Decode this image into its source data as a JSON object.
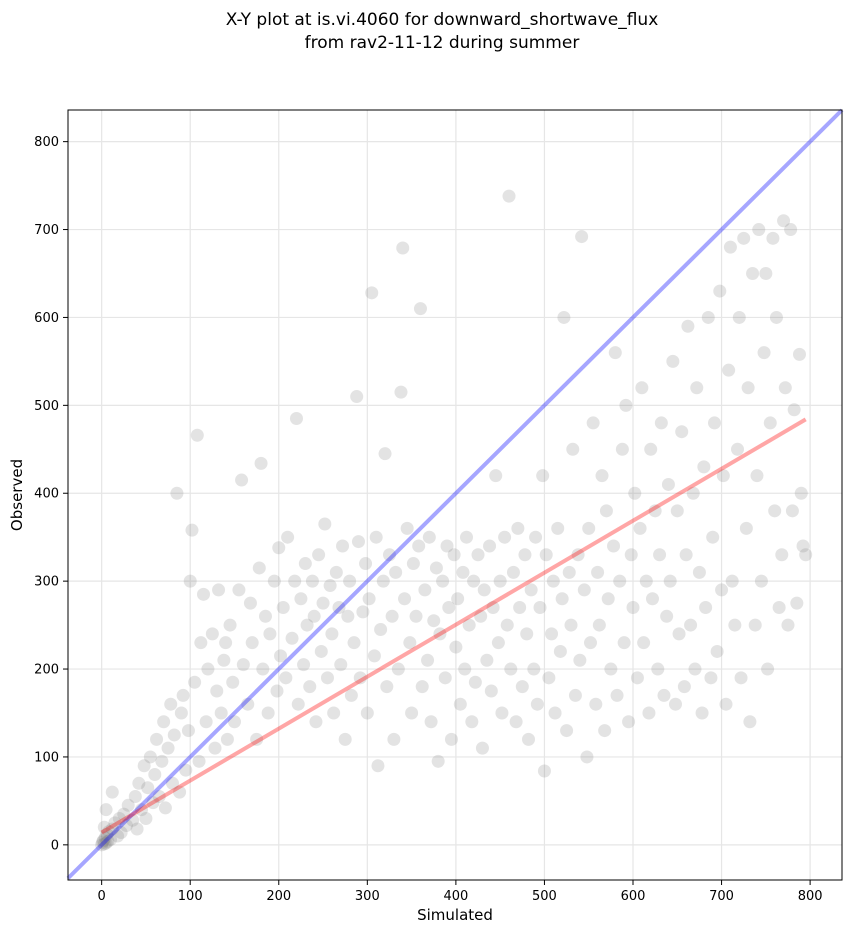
{
  "chart_data": {
    "type": "scatter",
    "title_lines": [
      "X-Y plot at is.vi.4060 for downward_shortwave_flux",
      "from rav2-11-12 during summer"
    ],
    "xlabel": "Simulated",
    "ylabel": "Observed",
    "xlim": [
      -38,
      836
    ],
    "ylim": [
      -40,
      836
    ],
    "x_ticks": [
      0,
      100,
      200,
      300,
      400,
      500,
      600,
      700,
      800
    ],
    "y_ticks": [
      0,
      100,
      200,
      300,
      400,
      500,
      600,
      700,
      800
    ],
    "grid": true,
    "point_color": "#808080",
    "one_to_one_line": {
      "color": "#0000ff",
      "x": [
        -38,
        836
      ],
      "y": [
        -38,
        836
      ]
    },
    "fit_line": {
      "color": "#ff0000",
      "x": [
        0,
        795
      ],
      "y": [
        14,
        484
      ]
    },
    "points_xy": [
      [
        0,
        0
      ],
      [
        1,
        3
      ],
      [
        2,
        5
      ],
      [
        3,
        1
      ],
      [
        4,
        8
      ],
      [
        5,
        2
      ],
      [
        6,
        12
      ],
      [
        7,
        4
      ],
      [
        8,
        15
      ],
      [
        10,
        6
      ],
      [
        3,
        20
      ],
      [
        12,
        18
      ],
      [
        15,
        25
      ],
      [
        18,
        10
      ],
      [
        20,
        30
      ],
      [
        5,
        40
      ],
      [
        22,
        14
      ],
      [
        25,
        35
      ],
      [
        28,
        22
      ],
      [
        30,
        45
      ],
      [
        12,
        60
      ],
      [
        35,
        28
      ],
      [
        38,
        55
      ],
      [
        40,
        18
      ],
      [
        42,
        70
      ],
      [
        45,
        40
      ],
      [
        48,
        90
      ],
      [
        50,
        30
      ],
      [
        52,
        65
      ],
      [
        55,
        100
      ],
      [
        58,
        48
      ],
      [
        60,
        80
      ],
      [
        62,
        120
      ],
      [
        65,
        55
      ],
      [
        68,
        95
      ],
      [
        70,
        140
      ],
      [
        72,
        42
      ],
      [
        75,
        110
      ],
      [
        78,
        160
      ],
      [
        80,
        70
      ],
      [
        82,
        125
      ],
      [
        85,
        400
      ],
      [
        88,
        60
      ],
      [
        90,
        150
      ],
      [
        92,
        170
      ],
      [
        95,
        85
      ],
      [
        98,
        130
      ],
      [
        100,
        300
      ],
      [
        102,
        358
      ],
      [
        105,
        185
      ],
      [
        108,
        466
      ],
      [
        110,
        95
      ],
      [
        112,
        230
      ],
      [
        115,
        285
      ],
      [
        118,
        140
      ],
      [
        120,
        200
      ],
      [
        125,
        240
      ],
      [
        128,
        110
      ],
      [
        130,
        175
      ],
      [
        132,
        290
      ],
      [
        135,
        150
      ],
      [
        138,
        210
      ],
      [
        140,
        230
      ],
      [
        142,
        120
      ],
      [
        145,
        250
      ],
      [
        148,
        185
      ],
      [
        150,
        140
      ],
      [
        155,
        290
      ],
      [
        158,
        415
      ],
      [
        160,
        205
      ],
      [
        165,
        160
      ],
      [
        168,
        275
      ],
      [
        170,
        230
      ],
      [
        175,
        120
      ],
      [
        178,
        315
      ],
      [
        180,
        434
      ],
      [
        182,
        200
      ],
      [
        185,
        260
      ],
      [
        188,
        150
      ],
      [
        190,
        240
      ],
      [
        195,
        300
      ],
      [
        198,
        175
      ],
      [
        200,
        338
      ],
      [
        202,
        215
      ],
      [
        205,
        270
      ],
      [
        208,
        190
      ],
      [
        210,
        350
      ],
      [
        215,
        235
      ],
      [
        218,
        300
      ],
      [
        220,
        485
      ],
      [
        222,
        160
      ],
      [
        225,
        280
      ],
      [
        228,
        205
      ],
      [
        230,
        320
      ],
      [
        232,
        250
      ],
      [
        235,
        180
      ],
      [
        238,
        300
      ],
      [
        240,
        260
      ],
      [
        242,
        140
      ],
      [
        245,
        330
      ],
      [
        248,
        220
      ],
      [
        250,
        275
      ],
      [
        252,
        365
      ],
      [
        255,
        190
      ],
      [
        258,
        295
      ],
      [
        260,
        240
      ],
      [
        262,
        150
      ],
      [
        265,
        310
      ],
      [
        268,
        270
      ],
      [
        270,
        205
      ],
      [
        272,
        340
      ],
      [
        275,
        120
      ],
      [
        278,
        260
      ],
      [
        280,
        300
      ],
      [
        282,
        170
      ],
      [
        285,
        230
      ],
      [
        288,
        510
      ],
      [
        290,
        345
      ],
      [
        292,
        190
      ],
      [
        295,
        265
      ],
      [
        298,
        320
      ],
      [
        300,
        150
      ],
      [
        302,
        280
      ],
      [
        305,
        628
      ],
      [
        308,
        215
      ],
      [
        310,
        350
      ],
      [
        312,
        90
      ],
      [
        315,
        245
      ],
      [
        318,
        300
      ],
      [
        320,
        445
      ],
      [
        322,
        180
      ],
      [
        325,
        330
      ],
      [
        328,
        260
      ],
      [
        330,
        120
      ],
      [
        332,
        310
      ],
      [
        335,
        200
      ],
      [
        338,
        515
      ],
      [
        340,
        679
      ],
      [
        342,
        280
      ],
      [
        345,
        360
      ],
      [
        348,
        230
      ],
      [
        350,
        150
      ],
      [
        352,
        320
      ],
      [
        355,
        260
      ],
      [
        358,
        340
      ],
      [
        360,
        610
      ],
      [
        362,
        180
      ],
      [
        365,
        290
      ],
      [
        368,
        210
      ],
      [
        370,
        350
      ],
      [
        372,
        140
      ],
      [
        375,
        255
      ],
      [
        378,
        315
      ],
      [
        380,
        95
      ],
      [
        382,
        240
      ],
      [
        385,
        300
      ],
      [
        388,
        190
      ],
      [
        390,
        340
      ],
      [
        392,
        270
      ],
      [
        395,
        120
      ],
      [
        398,
        330
      ],
      [
        400,
        225
      ],
      [
        402,
        280
      ],
      [
        405,
        160
      ],
      [
        408,
        310
      ],
      [
        410,
        200
      ],
      [
        412,
        350
      ],
      [
        415,
        250
      ],
      [
        418,
        140
      ],
      [
        420,
        300
      ],
      [
        422,
        185
      ],
      [
        425,
        330
      ],
      [
        428,
        260
      ],
      [
        430,
        110
      ],
      [
        432,
        290
      ],
      [
        435,
        210
      ],
      [
        438,
        340
      ],
      [
        440,
        175
      ],
      [
        442,
        270
      ],
      [
        445,
        420
      ],
      [
        448,
        230
      ],
      [
        450,
        300
      ],
      [
        452,
        150
      ],
      [
        455,
        350
      ],
      [
        458,
        250
      ],
      [
        460,
        738
      ],
      [
        462,
        200
      ],
      [
        465,
        310
      ],
      [
        468,
        140
      ],
      [
        470,
        360
      ],
      [
        472,
        270
      ],
      [
        475,
        180
      ],
      [
        478,
        330
      ],
      [
        480,
        240
      ],
      [
        482,
        120
      ],
      [
        485,
        290
      ],
      [
        488,
        200
      ],
      [
        490,
        350
      ],
      [
        492,
        160
      ],
      [
        495,
        270
      ],
      [
        498,
        420
      ],
      [
        500,
        84
      ],
      [
        502,
        330
      ],
      [
        505,
        190
      ],
      [
        508,
        240
      ],
      [
        510,
        300
      ],
      [
        512,
        150
      ],
      [
        515,
        360
      ],
      [
        518,
        220
      ],
      [
        520,
        280
      ],
      [
        522,
        600
      ],
      [
        525,
        130
      ],
      [
        528,
        310
      ],
      [
        530,
        250
      ],
      [
        532,
        450
      ],
      [
        535,
        170
      ],
      [
        538,
        330
      ],
      [
        540,
        210
      ],
      [
        542,
        692
      ],
      [
        545,
        290
      ],
      [
        548,
        100
      ],
      [
        550,
        360
      ],
      [
        552,
        230
      ],
      [
        555,
        480
      ],
      [
        558,
        160
      ],
      [
        560,
        310
      ],
      [
        562,
        250
      ],
      [
        565,
        420
      ],
      [
        568,
        130
      ],
      [
        570,
        380
      ],
      [
        572,
        280
      ],
      [
        575,
        200
      ],
      [
        578,
        340
      ],
      [
        580,
        560
      ],
      [
        582,
        170
      ],
      [
        585,
        300
      ],
      [
        588,
        450
      ],
      [
        590,
        230
      ],
      [
        592,
        500
      ],
      [
        595,
        140
      ],
      [
        598,
        330
      ],
      [
        600,
        270
      ],
      [
        602,
        400
      ],
      [
        605,
        190
      ],
      [
        608,
        360
      ],
      [
        610,
        520
      ],
      [
        612,
        230
      ],
      [
        615,
        300
      ],
      [
        618,
        150
      ],
      [
        620,
        450
      ],
      [
        622,
        280
      ],
      [
        625,
        380
      ],
      [
        628,
        200
      ],
      [
        630,
        330
      ],
      [
        632,
        480
      ],
      [
        635,
        170
      ],
      [
        638,
        260
      ],
      [
        640,
        410
      ],
      [
        642,
        300
      ],
      [
        645,
        550
      ],
      [
        648,
        160
      ],
      [
        650,
        380
      ],
      [
        652,
        240
      ],
      [
        655,
        470
      ],
      [
        658,
        180
      ],
      [
        660,
        330
      ],
      [
        662,
        590
      ],
      [
        665,
        250
      ],
      [
        668,
        400
      ],
      [
        670,
        200
      ],
      [
        672,
        520
      ],
      [
        675,
        310
      ],
      [
        678,
        150
      ],
      [
        680,
        430
      ],
      [
        682,
        270
      ],
      [
        685,
        600
      ],
      [
        688,
        190
      ],
      [
        690,
        350
      ],
      [
        692,
        480
      ],
      [
        695,
        220
      ],
      [
        698,
        630
      ],
      [
        700,
        290
      ],
      [
        702,
        420
      ],
      [
        705,
        160
      ],
      [
        708,
        540
      ],
      [
        710,
        680
      ],
      [
        712,
        300
      ],
      [
        715,
        250
      ],
      [
        718,
        450
      ],
      [
        720,
        600
      ],
      [
        722,
        190
      ],
      [
        725,
        690
      ],
      [
        728,
        360
      ],
      [
        730,
        520
      ],
      [
        732,
        140
      ],
      [
        735,
        650
      ],
      [
        738,
        250
      ],
      [
        740,
        420
      ],
      [
        742,
        700
      ],
      [
        745,
        300
      ],
      [
        748,
        560
      ],
      [
        750,
        650
      ],
      [
        752,
        200
      ],
      [
        755,
        480
      ],
      [
        758,
        690
      ],
      [
        760,
        380
      ],
      [
        762,
        600
      ],
      [
        765,
        270
      ],
      [
        768,
        330
      ],
      [
        770,
        710
      ],
      [
        772,
        520
      ],
      [
        775,
        250
      ],
      [
        778,
        700
      ],
      [
        780,
        380
      ],
      [
        782,
        495
      ],
      [
        785,
        275
      ],
      [
        788,
        558
      ],
      [
        790,
        400
      ],
      [
        792,
        340
      ],
      [
        795,
        330
      ]
    ]
  }
}
